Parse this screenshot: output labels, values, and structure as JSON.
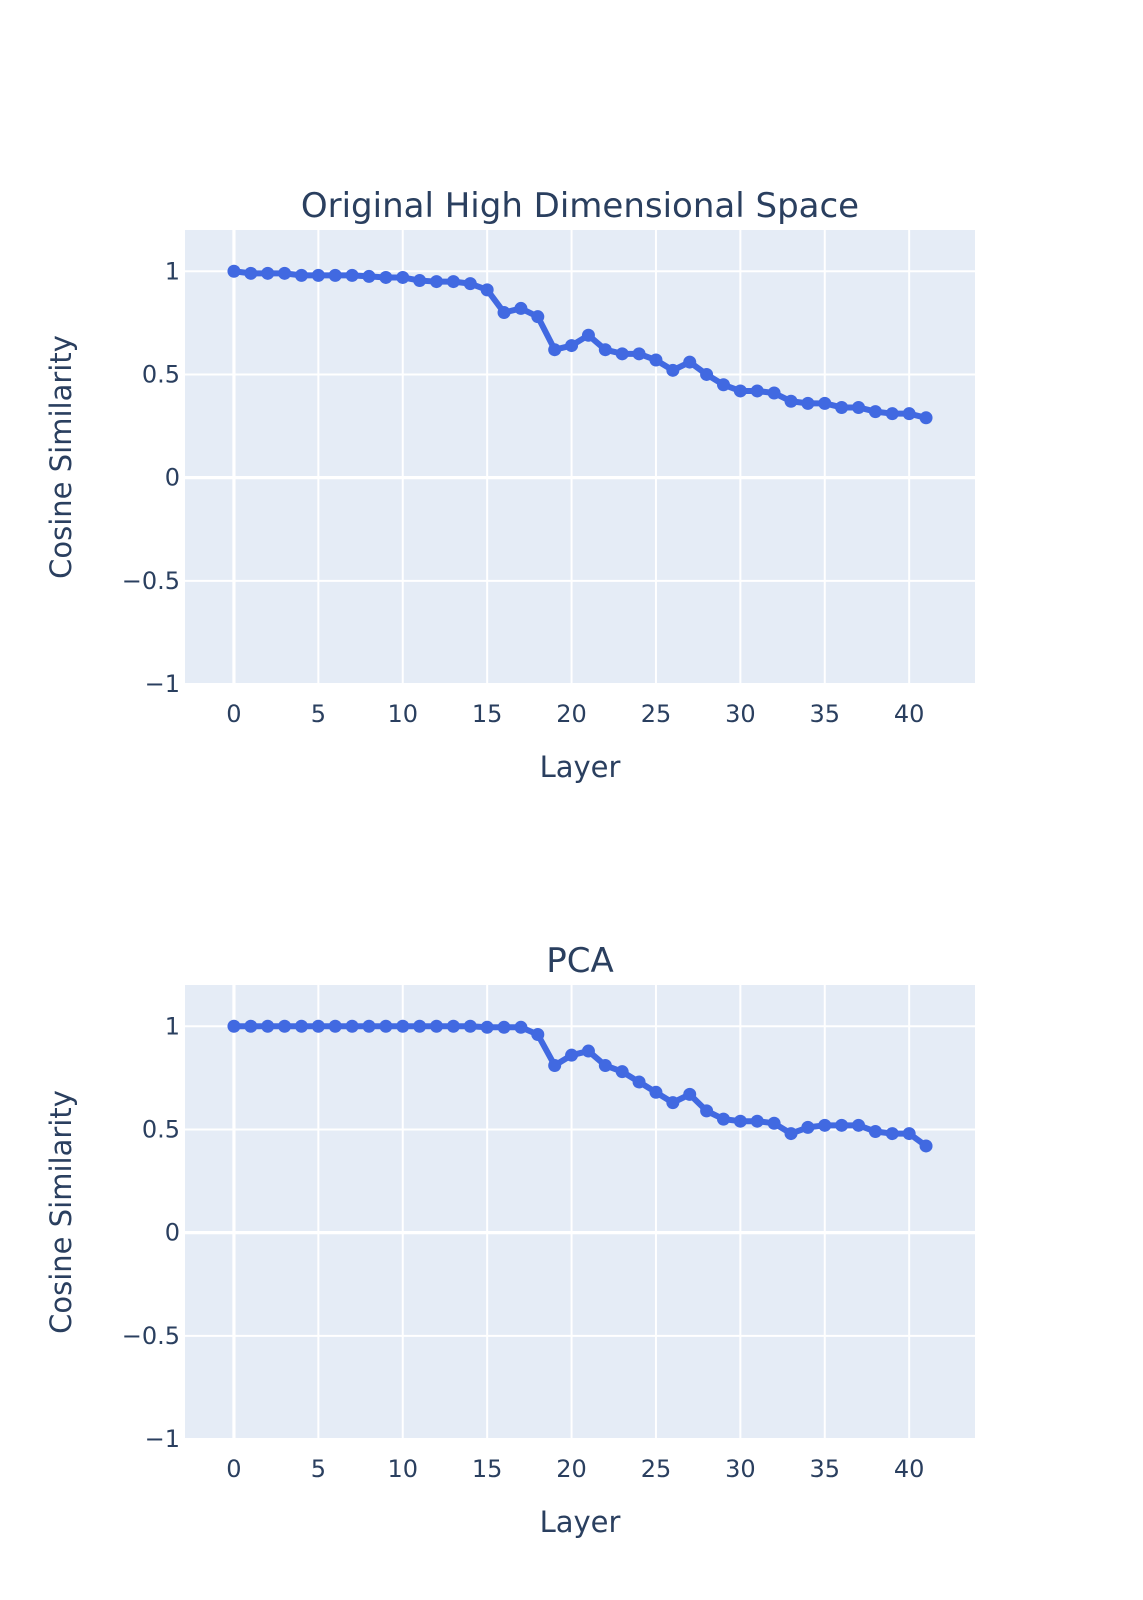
{
  "colors": {
    "line": "#4169e1",
    "plot_background": "#e5ecf6",
    "grid": "#ffffff",
    "text": "#2a3f5f"
  },
  "chart_data": [
    {
      "type": "line",
      "title": "Original High Dimensional Space",
      "xlabel": "Layer",
      "ylabel": "Cosine Similarity",
      "xlim": [
        -2.9,
        43.9
      ],
      "ylim": [
        -1,
        1.2
      ],
      "xticks": [
        0,
        5,
        10,
        15,
        20,
        25,
        30,
        35,
        40
      ],
      "xtick_labels": [
        "0",
        "5",
        "10",
        "15",
        "20",
        "25",
        "30",
        "35",
        "40"
      ],
      "yticks": [
        1,
        0.5,
        0,
        -0.5,
        -1
      ],
      "ytick_labels": [
        "1",
        "0.5",
        "0",
        "−0.5",
        "−1"
      ],
      "grid": true,
      "series": [
        {
          "name": "Cosine Similarity",
          "mode": "lines+markers",
          "x": [
            0,
            1,
            2,
            3,
            4,
            5,
            6,
            7,
            8,
            9,
            10,
            11,
            12,
            13,
            14,
            15,
            16,
            17,
            18,
            19,
            20,
            21,
            22,
            23,
            24,
            25,
            26,
            27,
            28,
            29,
            30,
            31,
            32,
            33,
            34,
            35,
            36,
            37,
            38,
            39,
            40,
            41
          ],
          "values": [
            1.0,
            0.99,
            0.99,
            0.99,
            0.98,
            0.98,
            0.98,
            0.98,
            0.975,
            0.97,
            0.97,
            0.955,
            0.95,
            0.95,
            0.94,
            0.91,
            0.8,
            0.82,
            0.78,
            0.62,
            0.64,
            0.69,
            0.62,
            0.6,
            0.6,
            0.57,
            0.52,
            0.56,
            0.5,
            0.45,
            0.42,
            0.42,
            0.41,
            0.37,
            0.36,
            0.36,
            0.34,
            0.34,
            0.32,
            0.31,
            0.31,
            0.29
          ]
        }
      ]
    },
    {
      "type": "line",
      "title": "PCA",
      "xlabel": "Layer",
      "ylabel": "Cosine Similarity",
      "xlim": [
        -2.9,
        43.9
      ],
      "ylim": [
        -1,
        1.2
      ],
      "xticks": [
        0,
        5,
        10,
        15,
        20,
        25,
        30,
        35,
        40
      ],
      "xtick_labels": [
        "0",
        "5",
        "10",
        "15",
        "20",
        "25",
        "30",
        "35",
        "40"
      ],
      "yticks": [
        1,
        0.5,
        0,
        -0.5,
        -1
      ],
      "ytick_labels": [
        "1",
        "0.5",
        "0",
        "−0.5",
        "−1"
      ],
      "grid": true,
      "series": [
        {
          "name": "Cosine Similarity",
          "mode": "lines+markers",
          "x": [
            0,
            1,
            2,
            3,
            4,
            5,
            6,
            7,
            8,
            9,
            10,
            11,
            12,
            13,
            14,
            15,
            16,
            17,
            18,
            19,
            20,
            21,
            22,
            23,
            24,
            25,
            26,
            27,
            28,
            29,
            30,
            31,
            32,
            33,
            34,
            35,
            36,
            37,
            38,
            39,
            40,
            41
          ],
          "values": [
            1.0,
            1.0,
            1.0,
            1.0,
            1.0,
            1.0,
            1.0,
            1.0,
            1.0,
            1.0,
            1.0,
            1.0,
            1.0,
            1.0,
            1.0,
            0.995,
            0.995,
            0.995,
            0.96,
            0.81,
            0.86,
            0.88,
            0.81,
            0.78,
            0.73,
            0.68,
            0.63,
            0.67,
            0.59,
            0.55,
            0.54,
            0.54,
            0.53,
            0.48,
            0.51,
            0.52,
            0.52,
            0.52,
            0.49,
            0.48,
            0.48,
            0.42
          ]
        }
      ]
    }
  ]
}
